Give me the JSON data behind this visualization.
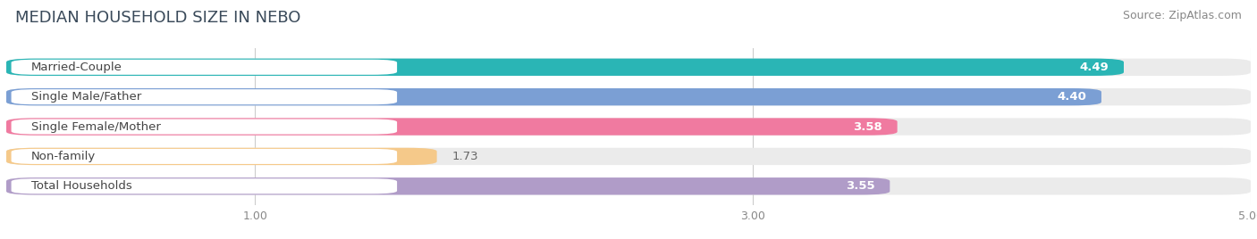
{
  "title": "MEDIAN HOUSEHOLD SIZE IN NEBO",
  "source": "Source: ZipAtlas.com",
  "categories": [
    "Married-Couple",
    "Single Male/Father",
    "Single Female/Mother",
    "Non-family",
    "Total Households"
  ],
  "values": [
    4.49,
    4.4,
    3.58,
    1.73,
    3.55
  ],
  "bar_colors": [
    "#2ab5b5",
    "#7b9fd4",
    "#f07aa0",
    "#f5c98a",
    "#b09cc8"
  ],
  "label_text_colors": [
    "#555555",
    "#555555",
    "#555555",
    "#888855",
    "#555555"
  ],
  "xlim": [
    0,
    5.0
  ],
  "xticks": [
    1.0,
    3.0,
    5.0
  ],
  "title_fontsize": 13,
  "source_fontsize": 9,
  "label_fontsize": 9.5,
  "value_fontsize": 9.5,
  "bar_height": 0.58,
  "background_color": "#ffffff",
  "bg_bar_color": "#ebebeb"
}
